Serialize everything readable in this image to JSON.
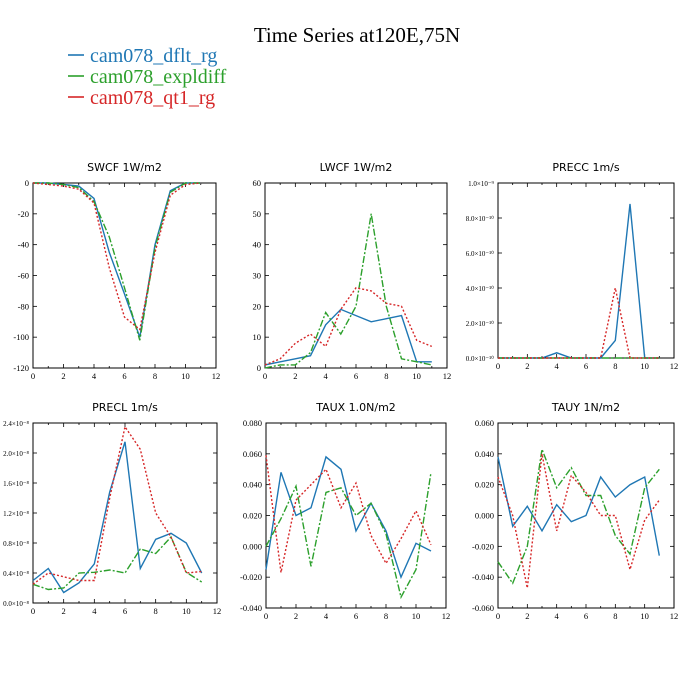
{
  "figure": {
    "title": "Time Series at120E,75N"
  },
  "legend": [
    {
      "name": "cam078_dflt_rg",
      "color": "#1f77b4",
      "dash": "solid"
    },
    {
      "name": "cam078_expldiff",
      "color": "#2ca02c",
      "dash": "dashdot"
    },
    {
      "name": "cam078_qt1_rg",
      "color": "#d62728",
      "dash": "dotted"
    }
  ],
  "colors": {
    "dflt": "#1f77b4",
    "expldiff": "#2ca02c",
    "qt1": "#d62728"
  },
  "chart_data": [
    {
      "type": "line",
      "title": "SWCF    1W/m2",
      "xlim": [
        0,
        12
      ],
      "ylim": [
        -120,
        0
      ],
      "xticks": [
        "0",
        "2",
        "4",
        "6",
        "8",
        "10",
        "12"
      ],
      "yticks": [
        "0",
        "-20",
        "-40",
        "-60",
        "-80",
        "-100",
        "-120"
      ],
      "series": [
        {
          "name": "cam078_dflt_rg",
          "x": [
            0,
            1,
            2,
            3,
            4,
            5,
            6,
            7,
            8,
            9,
            10,
            11
          ],
          "values": [
            0,
            0,
            -1,
            -2,
            -10,
            -45,
            -72,
            -100,
            -40,
            -5,
            0,
            0
          ]
        },
        {
          "name": "cam078_expldiff",
          "x": [
            0,
            1,
            2,
            3,
            4,
            5,
            6,
            7,
            8,
            9,
            10,
            11
          ],
          "values": [
            0,
            0,
            -1,
            -3,
            -12,
            -35,
            -68,
            -102,
            -42,
            -6,
            0,
            0
          ]
        },
        {
          "name": "cam078_qt1_rg",
          "x": [
            0,
            1,
            2,
            3,
            4,
            5,
            6,
            7,
            8,
            9,
            10,
            11
          ],
          "values": [
            0,
            -1,
            -2,
            -4,
            -13,
            -55,
            -87,
            -95,
            -45,
            -8,
            -1,
            0
          ]
        }
      ]
    },
    {
      "type": "line",
      "title": "LWCF    1W/m2",
      "xlim": [
        0,
        12
      ],
      "ylim": [
        0,
        60
      ],
      "xticks": [
        "0",
        "2",
        "4",
        "6",
        "8",
        "10",
        "12"
      ],
      "yticks": [
        "0",
        "10",
        "20",
        "30",
        "40",
        "50",
        "60"
      ],
      "series": [
        {
          "name": "cam078_dflt_rg",
          "x": [
            0,
            1,
            2,
            3,
            4,
            5,
            6,
            7,
            8,
            9,
            10,
            11
          ],
          "values": [
            1,
            2,
            3,
            4,
            14,
            19,
            17,
            15,
            16,
            17,
            2,
            2
          ]
        },
        {
          "name": "cam078_expldiff",
          "x": [
            0,
            1,
            2,
            3,
            4,
            5,
            6,
            7,
            8,
            9,
            10,
            11
          ],
          "values": [
            0,
            1,
            1,
            5,
            18,
            11,
            20,
            50,
            20,
            3,
            2,
            1
          ]
        },
        {
          "name": "cam078_qt1_rg",
          "x": [
            0,
            1,
            2,
            3,
            4,
            5,
            6,
            7,
            8,
            9,
            10,
            11
          ],
          "values": [
            1,
            3,
            8,
            11,
            7,
            19,
            26,
            25,
            21,
            20,
            9,
            7
          ]
        }
      ]
    },
    {
      "type": "line",
      "title": "PRECC    1m/s",
      "xlim": [
        0,
        12
      ],
      "ylim": [
        0,
        1e-09
      ],
      "xticks": [
        "0",
        "2",
        "4",
        "6",
        "8",
        "10",
        "12"
      ],
      "yticks": [
        "0.0×10⁻¹⁰",
        "2.0×10⁻¹⁰",
        "4.0×10⁻¹⁰",
        "6.0×10⁻¹⁰",
        "8.0×10⁻¹⁰",
        "1.0×10⁻⁹"
      ],
      "series": [
        {
          "name": "cam078_dflt_rg",
          "x": [
            0,
            1,
            2,
            3,
            4,
            5,
            6,
            7,
            8,
            9,
            10,
            11
          ],
          "values": [
            0,
            0,
            0,
            0,
            3e-11,
            0,
            0,
            0,
            1e-10,
            8.8e-10,
            0,
            0
          ]
        },
        {
          "name": "cam078_expldiff",
          "x": [
            0,
            1,
            2,
            3,
            4,
            5,
            6,
            7,
            8,
            9,
            10,
            11
          ],
          "values": [
            0,
            0,
            0,
            0,
            0,
            0,
            0,
            0,
            0,
            0,
            0,
            0
          ]
        },
        {
          "name": "cam078_qt1_rg",
          "x": [
            0,
            1,
            2,
            3,
            4,
            5,
            6,
            7,
            8,
            9,
            10,
            11
          ],
          "values": [
            0,
            0,
            0,
            0,
            0,
            0,
            0,
            0,
            4e-10,
            0,
            0,
            0
          ]
        }
      ]
    },
    {
      "type": "line",
      "title": "PRECL    1m/s",
      "xlim": [
        0,
        12
      ],
      "ylim": [
        0,
        2.4e-08
      ],
      "xticks": [
        "0",
        "2",
        "4",
        "6",
        "8",
        "10",
        "12"
      ],
      "yticks": [
        "0.0×10⁻⁸",
        "0.4×10⁻⁸",
        "0.8×10⁻⁸",
        "1.2×10⁻⁸",
        "1.6×10⁻⁸",
        "2.0×10⁻⁸",
        "2.4×10⁻⁸"
      ],
      "series": [
        {
          "name": "cam078_dflt_rg",
          "x": [
            0,
            1,
            2,
            3,
            4,
            5,
            6,
            7,
            8,
            9,
            10,
            11
          ],
          "values": [
            3e-09,
            4.6e-09,
            1.4e-09,
            2.7e-09,
            5.2e-09,
            1.48e-08,
            2.15e-08,
            4.6e-09,
            8.5e-09,
            9.3e-09,
            8e-09,
            4e-09
          ]
        },
        {
          "name": "cam078_expldiff",
          "x": [
            0,
            1,
            2,
            3,
            4,
            5,
            6,
            7,
            8,
            9,
            10,
            11
          ],
          "values": [
            2.5e-09,
            1.8e-09,
            2e-09,
            4e-09,
            4.1e-09,
            4.4e-09,
            4e-09,
            7.2e-09,
            6.6e-09,
            8.8e-09,
            4.1e-09,
            2.8e-09
          ]
        },
        {
          "name": "cam078_qt1_rg",
          "x": [
            0,
            1,
            2,
            3,
            4,
            5,
            6,
            7,
            8,
            9,
            10,
            11
          ],
          "values": [
            2.5e-09,
            4e-09,
            3.5e-09,
            3e-09,
            3e-09,
            1.4e-08,
            2.35e-08,
            2.05e-08,
            1.2e-08,
            8.8e-09,
            4e-09,
            4.2e-09
          ]
        }
      ]
    },
    {
      "type": "line",
      "title": "TAUX    1.0N/m2",
      "xlim": [
        0,
        12
      ],
      "ylim": [
        -0.04,
        0.08
      ],
      "xticks": [
        "0",
        "2",
        "4",
        "6",
        "8",
        "10",
        "12"
      ],
      "yticks": [
        "-0.040",
        "-0.020",
        "0.000",
        "0.020",
        "0.040",
        "0.060",
        "0.080"
      ],
      "series": [
        {
          "name": "cam078_dflt_rg",
          "x": [
            0,
            1,
            2,
            3,
            4,
            5,
            6,
            7,
            8,
            9,
            10,
            11
          ],
          "values": [
            -0.015,
            0.048,
            0.02,
            0.025,
            0.058,
            0.05,
            0.01,
            0.028,
            0.01,
            -0.02,
            0.002,
            -0.003
          ]
        },
        {
          "name": "cam078_expldiff",
          "x": [
            0,
            1,
            2,
            3,
            4,
            5,
            6,
            7,
            8,
            9,
            10,
            11
          ],
          "values": [
            0.0,
            0.018,
            0.039,
            -0.013,
            0.035,
            0.038,
            0.02,
            0.028,
            0.008,
            -0.033,
            -0.015,
            0.048
          ]
        },
        {
          "name": "cam078_qt1_rg",
          "x": [
            0,
            1,
            2,
            3,
            4,
            5,
            6,
            7,
            8,
            9,
            10,
            11
          ],
          "values": [
            0.059,
            -0.017,
            0.03,
            0.04,
            0.05,
            0.025,
            0.041,
            0.007,
            -0.011,
            0.005,
            0.023,
            0.001
          ]
        }
      ]
    },
    {
      "type": "line",
      "title": "TAUY    1N/m2",
      "xlim": [
        0,
        12
      ],
      "ylim": [
        -0.06,
        0.06
      ],
      "xticks": [
        "0",
        "2",
        "4",
        "6",
        "8",
        "10",
        "12"
      ],
      "yticks": [
        "-0.060",
        "-0.040",
        "-0.020",
        "0.000",
        "0.020",
        "0.040",
        "0.060"
      ],
      "series": [
        {
          "name": "cam078_dflt_rg",
          "x": [
            0,
            1,
            2,
            3,
            4,
            5,
            6,
            7,
            8,
            9,
            10,
            11
          ],
          "values": [
            0.038,
            -0.007,
            0.006,
            -0.01,
            0.007,
            -0.004,
            0.0,
            0.025,
            0.012,
            0.02,
            0.025,
            -0.026
          ]
        },
        {
          "name": "cam078_expldiff",
          "x": [
            0,
            1,
            2,
            3,
            4,
            5,
            6,
            7,
            8,
            9,
            10,
            11
          ],
          "values": [
            -0.03,
            -0.044,
            -0.02,
            0.043,
            0.018,
            0.031,
            0.013,
            0.013,
            -0.013,
            -0.025,
            0.018,
            0.03
          ]
        },
        {
          "name": "cam078_qt1_rg",
          "x": [
            0,
            1,
            2,
            3,
            4,
            5,
            6,
            7,
            8,
            9,
            10,
            11
          ],
          "values": [
            0.025,
            0.0,
            -0.047,
            0.04,
            -0.01,
            0.026,
            0.015,
            0.0,
            0.0,
            -0.035,
            -0.003,
            0.01
          ]
        }
      ]
    }
  ]
}
